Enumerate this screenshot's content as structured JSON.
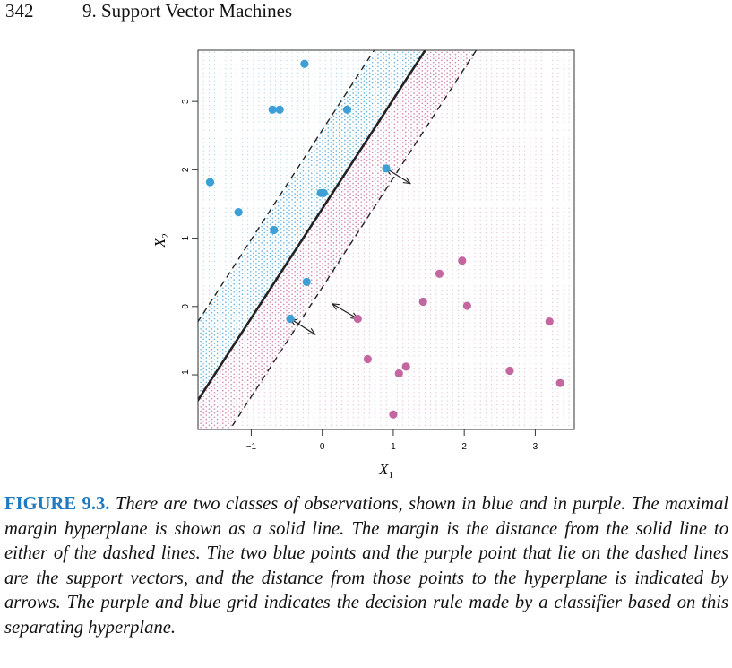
{
  "page": {
    "number": "342",
    "chapter_title": "9.  Support Vector Machines"
  },
  "figure": {
    "label": "FIGURE 9.3.",
    "caption": "There are two classes of observations, shown in blue and in purple. The maximal margin hyperplane is shown as a solid line. The margin is the distance from the solid line to either of the dashed lines. The two blue points and the purple point that lie on the dashed lines are the support vectors, and the distance from those points to the hyperplane is indicated by arrows. The purple and blue grid indicates the decision rule made by a classifier based on this separating hyperplane."
  },
  "chart_data": {
    "type": "scatter",
    "xlabel": "X",
    "xlabel_sub": "1",
    "ylabel": "X",
    "ylabel_sub": "2",
    "xlim": [
      -1.75,
      3.55
    ],
    "ylim": [
      -1.8,
      3.75
    ],
    "xticks": [
      -1,
      0,
      1,
      2,
      3
    ],
    "yticks": [
      -1,
      0,
      1,
      2,
      3
    ],
    "grid": "decision-region dot grid",
    "colors": {
      "blue": "#3d9fd6",
      "purple": "#c466a0",
      "line": "#222222"
    },
    "hyperplane": {
      "slope": 1.6,
      "intercept": 1.43
    },
    "margin_lines": [
      {
        "slope": 1.6,
        "intercept": 2.58
      },
      {
        "slope": 1.6,
        "intercept": 0.28
      }
    ],
    "series": [
      {
        "class": "blue",
        "points": [
          [
            -0.25,
            3.55
          ],
          [
            -0.7,
            2.88
          ],
          [
            -0.6,
            2.88
          ],
          [
            0.35,
            2.88
          ],
          [
            0.9,
            2.02
          ],
          [
            -1.58,
            1.82
          ],
          [
            -0.02,
            1.66
          ],
          [
            0.02,
            1.66
          ],
          [
            -1.18,
            1.38
          ],
          [
            -0.68,
            1.12
          ],
          [
            -0.22,
            0.36
          ],
          [
            -0.45,
            -0.18
          ]
        ]
      },
      {
        "class": "purple",
        "points": [
          [
            1.97,
            0.67
          ],
          [
            1.65,
            0.48
          ],
          [
            1.42,
            0.07
          ],
          [
            2.04,
            0.01
          ],
          [
            0.5,
            -0.18
          ],
          [
            3.2,
            -0.22
          ],
          [
            0.64,
            -0.77
          ],
          [
            1.18,
            -0.88
          ],
          [
            1.08,
            -0.98
          ],
          [
            2.64,
            -0.94
          ],
          [
            3.35,
            -1.12
          ],
          [
            1.0,
            -1.58
          ]
        ]
      }
    ],
    "arrows": [
      {
        "from": [
          0.9,
          2.02
        ],
        "to": [
          1.24,
          1.8
        ]
      },
      {
        "from": [
          -0.45,
          -0.18
        ],
        "to": [
          -0.1,
          -0.41
        ]
      },
      {
        "from": [
          0.5,
          -0.18
        ],
        "to": [
          0.14,
          0.04
        ]
      }
    ]
  }
}
